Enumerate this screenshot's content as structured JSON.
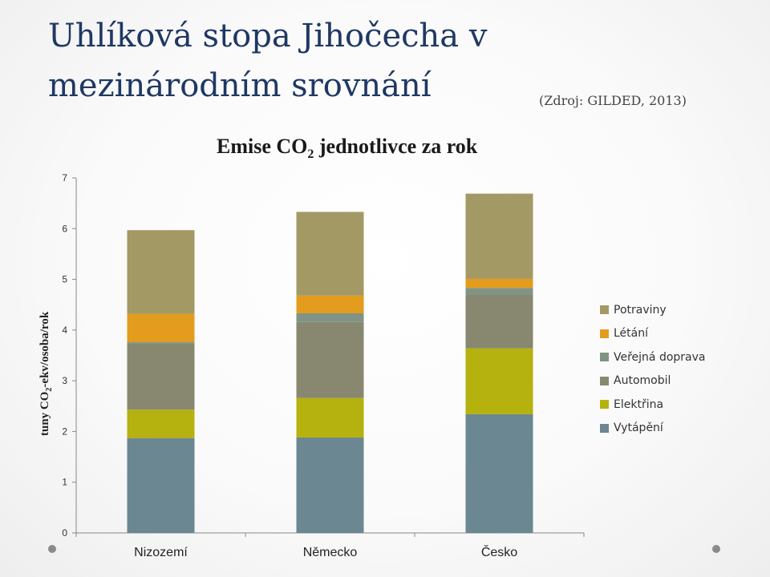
{
  "slide": {
    "title": "Uhlíková stopa Jihočecha v mezinárodním srovnání",
    "source": "(Zdroj: GILDED, 2013)"
  },
  "chart_data": {
    "type": "bar",
    "stacked": true,
    "title_main": "Emise CO",
    "title_sub": "2",
    "title_rest": " jednotlivce za rok",
    "ylabel_main": "tuny CO",
    "ylabel_sub": "2",
    "ylabel_rest": "-ekv/osoba/rok",
    "categories": [
      "Nizozemí",
      "Německo",
      "Česko"
    ],
    "ylim": [
      0,
      7
    ],
    "yticks": [
      "0",
      "1",
      "2",
      "3",
      "4",
      "5",
      "6",
      "7"
    ],
    "legend_position": "right",
    "series": [
      {
        "name": "Vytápění",
        "color": "#6b8791",
        "values": [
          1.87,
          1.88,
          2.34
        ]
      },
      {
        "name": "Elektřina",
        "color": "#b5b10f",
        "values": [
          0.56,
          0.78,
          1.3
        ]
      },
      {
        "name": "Automobil",
        "color": "#888870",
        "values": [
          1.3,
          1.5,
          1.06
        ]
      },
      {
        "name": "Veřejná doprava",
        "color": "#7f9484",
        "values": [
          0.03,
          0.17,
          0.13
        ]
      },
      {
        "name": "Létání",
        "color": "#e39c1d",
        "values": [
          0.56,
          0.35,
          0.18
        ]
      },
      {
        "name": "Potraviny",
        "color": "#a39964",
        "values": [
          1.65,
          1.65,
          1.68
        ]
      }
    ]
  }
}
